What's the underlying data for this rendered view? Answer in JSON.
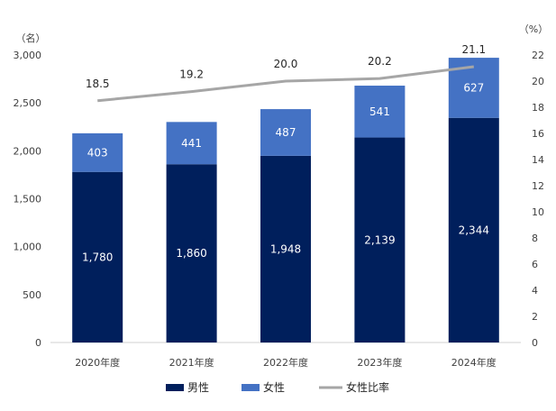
{
  "chart_data": {
    "type": "bar",
    "stacked": true,
    "categories": [
      "2020年度",
      "2021年度",
      "2022年度",
      "2023年度",
      "2024年度"
    ],
    "series": [
      {
        "name": "男性",
        "axis": "left",
        "color": "#001f5c",
        "values": [
          1780,
          1860,
          1948,
          2139,
          2344
        ],
        "labels": [
          "1,780",
          "1,860",
          "1,948",
          "2,139",
          "2,344"
        ]
      },
      {
        "name": "女性",
        "axis": "left",
        "color": "#4472c4",
        "values": [
          403,
          441,
          487,
          541,
          627
        ],
        "labels": [
          "403",
          "441",
          "487",
          "541",
          "627"
        ]
      },
      {
        "name": "女性比率",
        "type": "line",
        "axis": "right",
        "color": "#a6a6a6",
        "values": [
          18.5,
          19.2,
          20.0,
          20.2,
          21.1
        ],
        "labels": [
          "18.5",
          "19.2",
          "20.0",
          "20.2",
          "21.1"
        ]
      }
    ],
    "y_left": {
      "unit": "（名）",
      "ylim": [
        0,
        3000
      ],
      "ticks": [
        "0",
        "500",
        "1,000",
        "1,500",
        "2,000",
        "2,500",
        "3,000"
      ]
    },
    "y_right": {
      "unit": "（%）",
      "ylim": [
        0,
        22
      ],
      "ticks": [
        "0",
        "2",
        "4",
        "6",
        "8",
        "10",
        "12",
        "14",
        "16",
        "18",
        "20",
        "22"
      ]
    },
    "grid": false,
    "legend": "bottom",
    "legend_items": [
      {
        "label": "男性",
        "symbol": "square",
        "color": "#001f5c"
      },
      {
        "label": "女性",
        "symbol": "square",
        "color": "#4472c4"
      },
      {
        "label": "女性比率",
        "symbol": "line",
        "color": "#a6a6a6"
      }
    ]
  }
}
